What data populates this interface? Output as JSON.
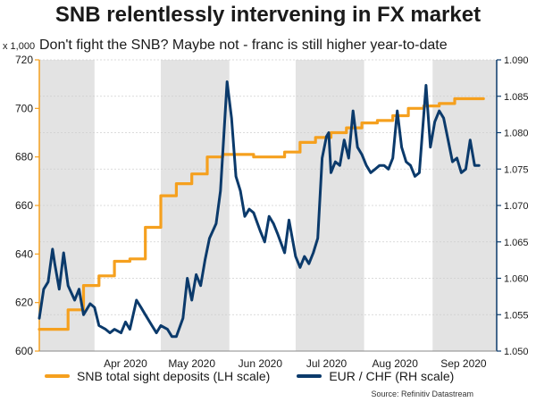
{
  "title": "SNB relentlessly intervening in FX market",
  "subtitle": "Don't fight the SNB? Maybe not - franc is still higher year-to-date",
  "source": "Source: Refinitiv Datastream",
  "colors": {
    "left_series": "#f5a01e",
    "right_series": "#0b3a6b",
    "shade": "#e3e3e3",
    "left_axis": "#f5a01e",
    "right_axis": "#0b3a6b"
  },
  "chart_data": {
    "type": "line",
    "title": "SNB relentlessly intervening in FX market",
    "left_axis": {
      "unit_label": "x 1,000",
      "ylim": [
        600,
        720
      ],
      "ticks": [
        "600",
        "620",
        "640",
        "660",
        "680",
        "700",
        "720"
      ]
    },
    "right_axis": {
      "ylim": [
        1.05,
        1.09
      ],
      "ticks": [
        "1.050",
        "1.055",
        "1.060",
        "1.065",
        "1.070",
        "1.075",
        "1.080",
        "1.085",
        "1.090"
      ]
    },
    "x_range": [
      "2020-03-07",
      "2020-09-30"
    ],
    "x_ticks": [
      {
        "label": "Apr 2020",
        "date": "2020-04-15"
      },
      {
        "label": "May 2020",
        "date": "2020-05-15"
      },
      {
        "label": "Jun 2020",
        "date": "2020-06-15"
      },
      {
        "label": "Jul 2020",
        "date": "2020-07-15"
      },
      {
        "label": "Aug 2020",
        "date": "2020-08-15"
      },
      {
        "label": "Sep 2020",
        "date": "2020-09-15"
      }
    ],
    "shaded_months": [
      [
        "2020-03-07",
        "2020-04-01"
      ],
      [
        "2020-05-01",
        "2020-06-01"
      ],
      [
        "2020-07-01",
        "2020-08-01"
      ],
      [
        "2020-09-01",
        "2020-09-30"
      ]
    ],
    "series": [
      {
        "name": "SNB total sight deposits (LH scale)",
        "axis": "left",
        "color": "#f5a01e",
        "step": true,
        "points": [
          [
            "2020-03-07",
            609
          ],
          [
            "2020-03-13",
            609
          ],
          [
            "2020-03-20",
            617
          ],
          [
            "2020-03-27",
            627
          ],
          [
            "2020-04-03",
            631
          ],
          [
            "2020-04-10",
            637
          ],
          [
            "2020-04-17",
            638
          ],
          [
            "2020-04-24",
            651
          ],
          [
            "2020-05-01",
            664
          ],
          [
            "2020-05-08",
            669
          ],
          [
            "2020-05-15",
            673
          ],
          [
            "2020-05-22",
            680
          ],
          [
            "2020-05-29",
            681
          ],
          [
            "2020-06-05",
            681
          ],
          [
            "2020-06-12",
            680
          ],
          [
            "2020-06-19",
            680
          ],
          [
            "2020-06-26",
            682
          ],
          [
            "2020-07-03",
            686
          ],
          [
            "2020-07-10",
            688
          ],
          [
            "2020-07-17",
            690
          ],
          [
            "2020-07-24",
            692
          ],
          [
            "2020-07-31",
            694
          ],
          [
            "2020-08-07",
            695
          ],
          [
            "2020-08-14",
            697
          ],
          [
            "2020-08-21",
            700
          ],
          [
            "2020-08-28",
            701
          ],
          [
            "2020-09-04",
            702
          ],
          [
            "2020-09-11",
            704
          ],
          [
            "2020-09-18",
            704
          ],
          [
            "2020-09-24",
            704
          ]
        ]
      },
      {
        "name": "EUR / CHF (RH scale)",
        "axis": "right",
        "color": "#0b3a6b",
        "step": false,
        "points": [
          [
            "2020-03-07",
            1.0545
          ],
          [
            "2020-03-09",
            1.0585
          ],
          [
            "2020-03-11",
            1.0595
          ],
          [
            "2020-03-13",
            1.064
          ],
          [
            "2020-03-14",
            1.062
          ],
          [
            "2020-03-16",
            1.0585
          ],
          [
            "2020-03-18",
            1.0635
          ],
          [
            "2020-03-20",
            1.059
          ],
          [
            "2020-03-23",
            1.057
          ],
          [
            "2020-03-25",
            1.0585
          ],
          [
            "2020-03-27",
            1.055
          ],
          [
            "2020-03-30",
            1.0565
          ],
          [
            "2020-04-01",
            1.056
          ],
          [
            "2020-04-03",
            1.0535
          ],
          [
            "2020-04-06",
            1.053
          ],
          [
            "2020-04-08",
            1.0525
          ],
          [
            "2020-04-10",
            1.053
          ],
          [
            "2020-04-13",
            1.0525
          ],
          [
            "2020-04-15",
            1.054
          ],
          [
            "2020-04-17",
            1.053
          ],
          [
            "2020-04-20",
            1.057
          ],
          [
            "2020-04-22",
            1.056
          ],
          [
            "2020-04-24",
            1.055
          ],
          [
            "2020-04-27",
            1.0535
          ],
          [
            "2020-04-29",
            1.0525
          ],
          [
            "2020-05-01",
            1.0535
          ],
          [
            "2020-05-04",
            1.053
          ],
          [
            "2020-05-06",
            1.052
          ],
          [
            "2020-05-08",
            1.052
          ],
          [
            "2020-05-11",
            1.0545
          ],
          [
            "2020-05-13",
            1.06
          ],
          [
            "2020-05-15",
            1.057
          ],
          [
            "2020-05-17",
            1.0605
          ],
          [
            "2020-05-19",
            1.059
          ],
          [
            "2020-05-21",
            1.0625
          ],
          [
            "2020-05-23",
            1.0655
          ],
          [
            "2020-05-26",
            1.0675
          ],
          [
            "2020-05-28",
            1.072
          ],
          [
            "2020-05-31",
            1.087
          ],
          [
            "2020-06-02",
            1.082
          ],
          [
            "2020-06-04",
            1.074
          ],
          [
            "2020-06-06",
            1.072
          ],
          [
            "2020-06-08",
            1.0685
          ],
          [
            "2020-06-10",
            1.0695
          ],
          [
            "2020-06-12",
            1.069
          ],
          [
            "2020-06-15",
            1.0665
          ],
          [
            "2020-06-17",
            1.065
          ],
          [
            "2020-06-19",
            1.0685
          ],
          [
            "2020-06-21",
            1.0675
          ],
          [
            "2020-06-23",
            1.066
          ],
          [
            "2020-06-26",
            1.0635
          ],
          [
            "2020-06-28",
            1.068
          ],
          [
            "2020-07-01",
            1.063
          ],
          [
            "2020-07-03",
            1.0615
          ],
          [
            "2020-07-05",
            1.063
          ],
          [
            "2020-07-07",
            1.062
          ],
          [
            "2020-07-09",
            1.0635
          ],
          [
            "2020-07-11",
            1.0655
          ],
          [
            "2020-07-13",
            1.0765
          ],
          [
            "2020-07-15",
            1.0795
          ],
          [
            "2020-07-16",
            1.08
          ],
          [
            "2020-07-17",
            1.0745
          ],
          [
            "2020-07-19",
            1.076
          ],
          [
            "2020-07-21",
            1.0755
          ],
          [
            "2020-07-23",
            1.079
          ],
          [
            "2020-07-25",
            1.0765
          ],
          [
            "2020-07-27",
            1.083
          ],
          [
            "2020-07-29",
            1.078
          ],
          [
            "2020-07-31",
            1.077
          ],
          [
            "2020-08-02",
            1.0755
          ],
          [
            "2020-08-04",
            1.0745
          ],
          [
            "2020-08-06",
            1.075
          ],
          [
            "2020-08-08",
            1.0755
          ],
          [
            "2020-08-10",
            1.0755
          ],
          [
            "2020-08-12",
            1.075
          ],
          [
            "2020-08-14",
            1.0765
          ],
          [
            "2020-08-16",
            1.083
          ],
          [
            "2020-08-18",
            1.078
          ],
          [
            "2020-08-20",
            1.076
          ],
          [
            "2020-08-22",
            1.0755
          ],
          [
            "2020-08-24",
            1.074
          ],
          [
            "2020-08-26",
            1.0745
          ],
          [
            "2020-08-29",
            1.0865
          ],
          [
            "2020-08-31",
            1.078
          ],
          [
            "2020-09-02",
            1.0815
          ],
          [
            "2020-09-04",
            1.083
          ],
          [
            "2020-09-06",
            1.082
          ],
          [
            "2020-09-08",
            1.079
          ],
          [
            "2020-09-10",
            1.076
          ],
          [
            "2020-09-12",
            1.0765
          ],
          [
            "2020-09-14",
            1.0745
          ],
          [
            "2020-09-16",
            1.075
          ],
          [
            "2020-09-18",
            1.079
          ],
          [
            "2020-09-20",
            1.0755
          ],
          [
            "2020-09-22",
            1.0755
          ]
        ]
      }
    ]
  }
}
